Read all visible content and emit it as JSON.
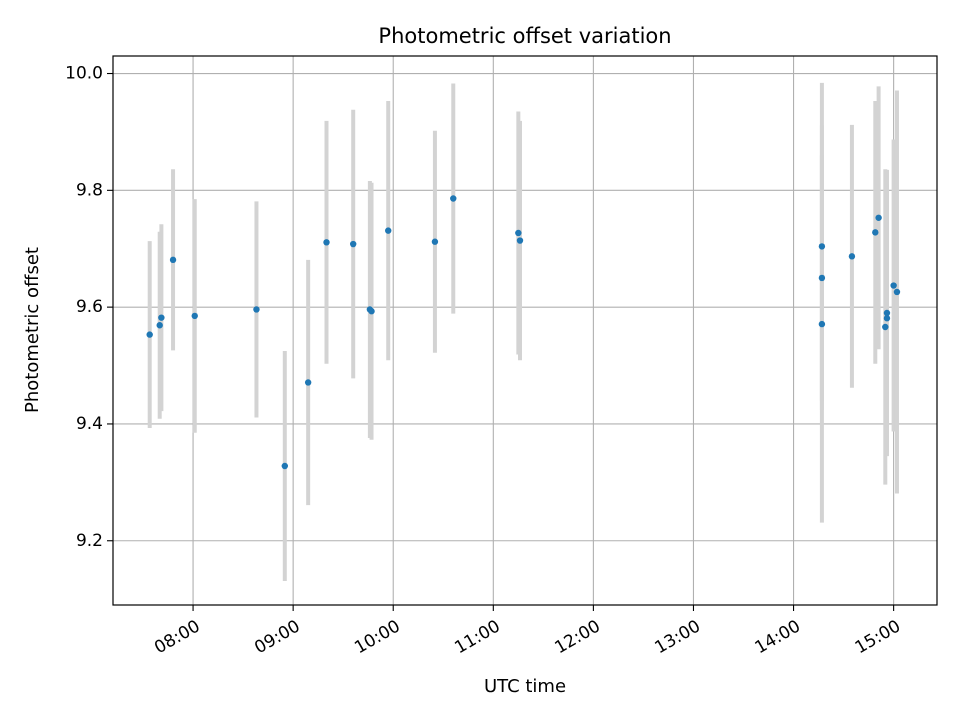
{
  "chart_data": {
    "type": "scatter",
    "title": "Photometric offset variation",
    "xlabel": "UTC time",
    "ylabel": "Photometric offset",
    "x_unit": "hours UTC",
    "xlim": [
      "07:12",
      "15:26"
    ],
    "ylim": [
      9.09,
      10.03
    ],
    "xticks": [
      "08:00",
      "09:00",
      "10:00",
      "11:00",
      "12:00",
      "13:00",
      "14:00",
      "15:00"
    ],
    "yticks": [
      "9.2",
      "9.4",
      "9.6",
      "9.8",
      "10.0"
    ],
    "grid": true,
    "colors": {
      "marker": "#1f77b4",
      "errorbar": "#d3d3d3",
      "grid": "#b0b0b0",
      "frame": "#000000"
    },
    "series": [
      {
        "style": "points with vertical error bars",
        "points": [
          {
            "x": "07:34",
            "y": 9.553,
            "err": 0.16
          },
          {
            "x": "07:40",
            "y": 9.569,
            "err": 0.16
          },
          {
            "x": "07:41",
            "y": 9.582,
            "err": 0.16
          },
          {
            "x": "07:48",
            "y": 9.681,
            "err": 0.155
          },
          {
            "x": "08:01",
            "y": 9.585,
            "err": 0.2
          },
          {
            "x": "08:38",
            "y": 9.596,
            "err": 0.185
          },
          {
            "x": "08:55",
            "y": 9.328,
            "err": 0.197
          },
          {
            "x": "09:09",
            "y": 9.471,
            "err": 0.21
          },
          {
            "x": "09:20",
            "y": 9.711,
            "err": 0.208
          },
          {
            "x": "09:36",
            "y": 9.708,
            "err": 0.23
          },
          {
            "x": "09:46",
            "y": 9.596,
            "err": 0.22
          },
          {
            "x": "09:47",
            "y": 9.593,
            "err": 0.22
          },
          {
            "x": "09:57",
            "y": 9.731,
            "err": 0.222
          },
          {
            "x": "10:25",
            "y": 9.712,
            "err": 0.19
          },
          {
            "x": "10:36",
            "y": 9.786,
            "err": 0.197
          },
          {
            "x": "11:15",
            "y": 9.727,
            "err": 0.208
          },
          {
            "x": "11:16",
            "y": 9.714,
            "err": 0.205
          },
          {
            "x": "14:17",
            "y": 9.704,
            "err": 0.28
          },
          {
            "x": "14:17",
            "y": 9.65,
            "err": 0.21
          },
          {
            "x": "14:17",
            "y": 9.571,
            "err": 0.34
          },
          {
            "x": "14:35",
            "y": 9.687,
            "err": 0.225
          },
          {
            "x": "14:49",
            "y": 9.728,
            "err": 0.225
          },
          {
            "x": "14:51",
            "y": 9.753,
            "err": 0.225
          },
          {
            "x": "14:55",
            "y": 9.566,
            "err": 0.27
          },
          {
            "x": "14:56",
            "y": 9.59,
            "err": 0.245
          },
          {
            "x": "14:56",
            "y": 9.581,
            "err": 0.23
          },
          {
            "x": "15:00",
            "y": 9.637,
            "err": 0.25
          },
          {
            "x": "15:02",
            "y": 9.626,
            "err": 0.345
          }
        ]
      }
    ]
  }
}
